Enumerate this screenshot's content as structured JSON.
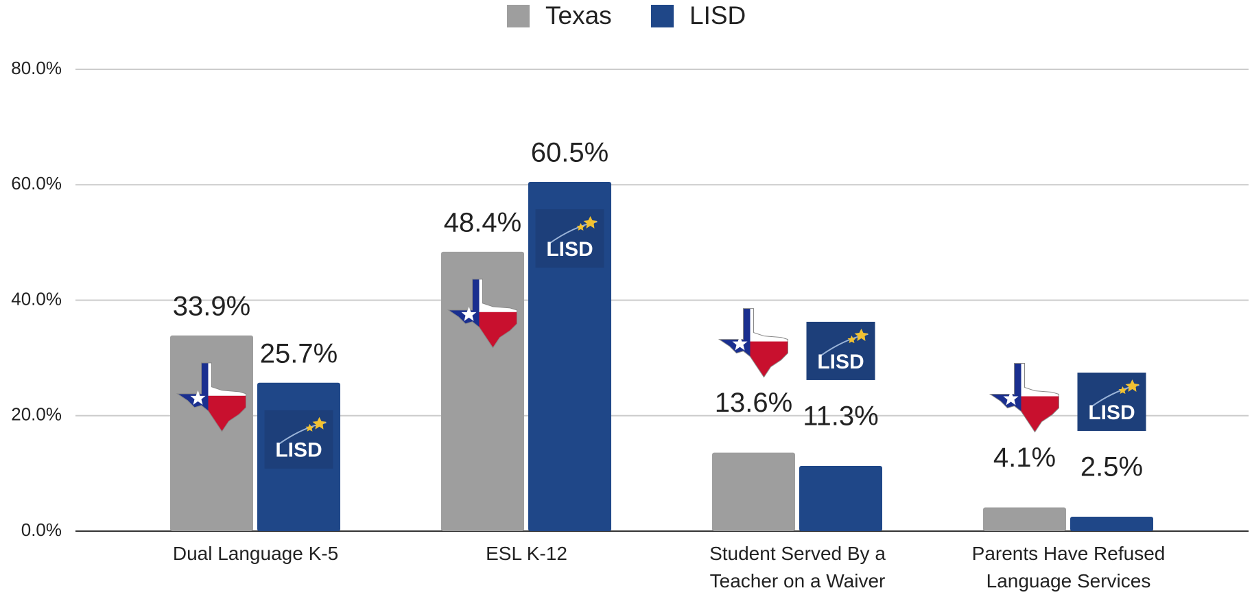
{
  "chart_data": {
    "type": "bar",
    "categories": [
      "Dual Language K-5",
      "ESL K-12",
      "Student Served By a Teacher on a Waiver",
      "Parents Have Refused Language Services"
    ],
    "series": [
      {
        "name": "Texas",
        "color": "#9e9e9e",
        "values": [
          33.9,
          48.4,
          13.6,
          4.1
        ],
        "value_labels": [
          "33.9%",
          "48.4%",
          "13.6%",
          "4.1%"
        ]
      },
      {
        "name": "LISD",
        "color": "#1f4788",
        "values": [
          25.7,
          60.5,
          11.3,
          2.5
        ],
        "value_labels": [
          "25.7%",
          "60.5%",
          "11.3%",
          "2.5%"
        ]
      }
    ],
    "ylim": [
      0,
      80
    ],
    "yticks": [
      {
        "value": 0,
        "label": "0.0%"
      },
      {
        "value": 20,
        "label": "20.0%"
      },
      {
        "value": 40,
        "label": "40.0%"
      },
      {
        "value": 60,
        "label": "60.0%"
      },
      {
        "value": 80,
        "label": "80.0%"
      }
    ],
    "grid": true,
    "legend": "top"
  }
}
